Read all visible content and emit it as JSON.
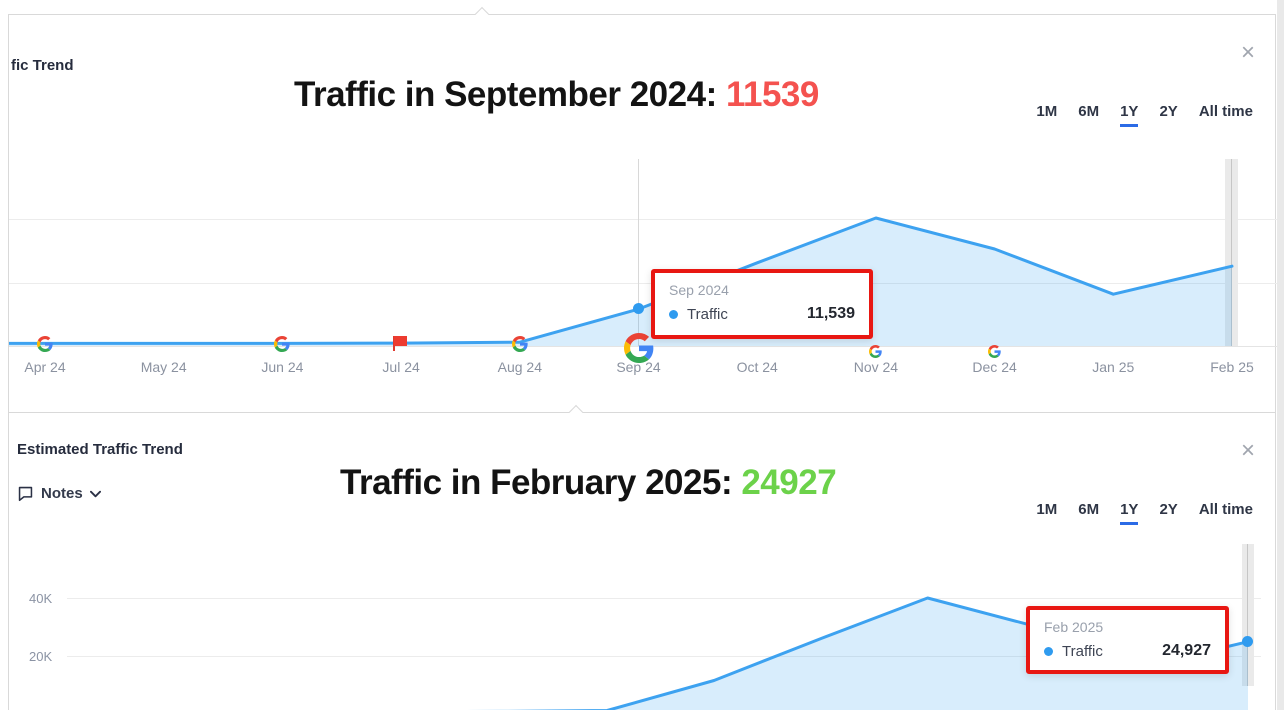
{
  "panels": [
    {
      "header_title": "fic Trend",
      "close_icon": "×",
      "overlay": {
        "text": "Traffic in September 2024: ",
        "value": "11539",
        "value_color": "#f4524f"
      },
      "ranges": {
        "items": [
          "1M",
          "6M",
          "1Y",
          "2Y",
          "All time"
        ],
        "active": "1Y"
      },
      "tooltip": {
        "date": "Sep 2024",
        "series": "Traffic",
        "value": "11,539"
      },
      "x_labels": [
        "Apr 24",
        "May 24",
        "Jun 24",
        "Jul 24",
        "Aug 24",
        "Sep 24",
        "Oct 24",
        "Nov 24",
        "Dec 24",
        "Jan 25",
        "Feb 25"
      ],
      "markers": [
        {
          "month": "Apr 24",
          "icon": "google-icon",
          "variant": "google"
        },
        {
          "month": "Jun 24",
          "icon": "google-icon",
          "variant": "google"
        },
        {
          "month": "Jul 24",
          "icon": "red-flag-icon",
          "variant": "red-flag"
        },
        {
          "month": "Aug 24",
          "icon": "google-icon",
          "variant": "google"
        },
        {
          "month": "Sep 24",
          "icon": "google-icon",
          "variant": "google-large"
        },
        {
          "month": "Nov 24",
          "icon": "google-icon",
          "variant": "google-axis"
        },
        {
          "month": "Dec 24",
          "icon": "google-icon",
          "variant": "google-axis"
        }
      ],
      "accent_line_color": "#3da2f0"
    },
    {
      "header_title": "Estimated Traffic Trend",
      "notes_label": "Notes",
      "close_icon": "×",
      "overlay": {
        "text": "Traffic in February 2025: ",
        "value": "24927",
        "value_color": "#6cd24a"
      },
      "ranges": {
        "items": [
          "1M",
          "6M",
          "1Y",
          "2Y",
          "All time"
        ],
        "active": "1Y"
      },
      "tooltip": {
        "date": "Feb 2025",
        "series": "Traffic",
        "value": "24,927"
      },
      "y_labels": [
        "40K",
        "20K"
      ],
      "accent_line_color": "#3da2f0"
    }
  ],
  "chart_data": [
    {
      "type": "area",
      "title": "Traffic Trend",
      "categories": [
        "Apr 24",
        "May 24",
        "Jun 24",
        "Jul 24",
        "Aug 24",
        "Sep 24",
        "Oct 24",
        "Nov 24",
        "Dec 24",
        "Jan 25",
        "Feb 25"
      ],
      "series": [
        {
          "name": "Traffic",
          "values": [
            800,
            800,
            800,
            900,
            1200,
            11539,
            26000,
            40000,
            30300,
            16200,
            24927
          ]
        }
      ],
      "highlighted_point": {
        "category": "Sep 24",
        "value": 11539
      },
      "xlabel": "",
      "ylabel": "",
      "ylim": [
        0,
        58000
      ],
      "y_axis_visible": false,
      "grid": true,
      "legend": "none"
    },
    {
      "type": "area",
      "title": "Estimated Traffic Trend",
      "categories": [
        "Apr 24",
        "May 24",
        "Jun 24",
        "Jul 24",
        "Aug 24",
        "Sep 24",
        "Oct 24",
        "Nov 24",
        "Dec 24",
        "Jan 25",
        "Feb 25"
      ],
      "series": [
        {
          "name": "Traffic",
          "values": [
            800,
            800,
            800,
            900,
            1200,
            11539,
            26000,
            40000,
            30300,
            16200,
            24927
          ]
        }
      ],
      "highlighted_point": {
        "category": "Feb 25",
        "value": 24927
      },
      "xlabel": "",
      "ylabel": "",
      "ylim": [
        0,
        52000
      ],
      "ytick_labels": [
        "40K",
        "20K"
      ],
      "grid": true,
      "legend": "none"
    }
  ]
}
